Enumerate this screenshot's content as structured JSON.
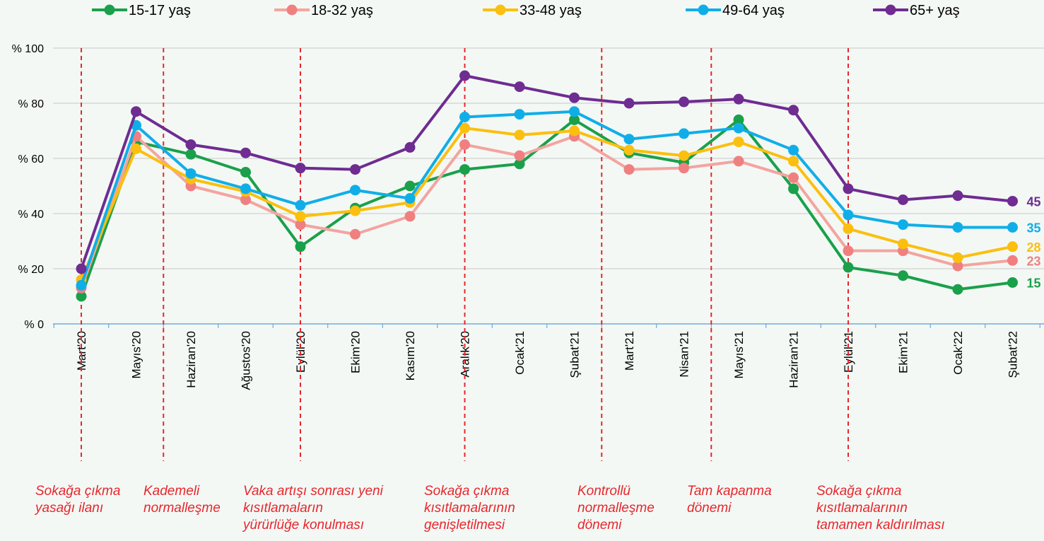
{
  "chart_data": {
    "type": "line",
    "categories": [
      "Mart'20",
      "Mayıs'20",
      "Haziran'20",
      "Ağustos'20",
      "Eylül'20",
      "Ekim'20",
      "Kasım'20",
      "Aralık'20",
      "Ocak'21",
      "Şubat'21",
      "Mart'21",
      "Nisan'21",
      "Mayıs'21",
      "Haziran'21",
      "Eylül'21",
      "Ekim'21",
      "Ocak'22",
      "Şubat'22"
    ],
    "series": [
      {
        "name": "15-17 yaş",
        "color": "#1aa04a",
        "values": [
          10,
          66,
          61.5,
          55,
          28,
          42,
          50,
          56,
          58,
          74,
          62,
          58.5,
          74,
          49,
          20.5,
          17.5,
          12.5,
          15
        ],
        "end_label": "15"
      },
      {
        "name": "18-32 yaş",
        "color": "#f4a49f",
        "marker_color": "#f08080",
        "values": [
          13,
          68,
          50,
          45,
          36,
          32.5,
          39,
          65,
          61,
          68,
          56,
          56.5,
          59,
          53,
          26.5,
          26.5,
          21,
          23
        ],
        "end_label": "23"
      },
      {
        "name": "33-48 yaş",
        "color": "#fbbf0f",
        "values": [
          16,
          63.5,
          52.5,
          48,
          39,
          41,
          44,
          71,
          68.5,
          70,
          63,
          61,
          66,
          59,
          34.5,
          29,
          24,
          28
        ],
        "end_label": "28"
      },
      {
        "name": "49-64 yaş",
        "color": "#10aee8",
        "values": [
          14,
          72,
          54.5,
          49,
          43,
          48.5,
          45.5,
          75,
          76,
          77,
          67,
          69,
          71,
          63,
          39.5,
          36,
          35,
          35
        ],
        "end_label": "35"
      },
      {
        "name": "65+ yaş",
        "color": "#6f2c91",
        "values": [
          20,
          77,
          65,
          62,
          56.5,
          56,
          64,
          90,
          86,
          82,
          80,
          80.5,
          81.5,
          77.5,
          49,
          45,
          46.5,
          44.5
        ],
        "end_label": "45"
      }
    ],
    "y_ticks": [
      "% 0",
      "% 20",
      "% 40",
      "% 60",
      "% 80",
      "% 100"
    ],
    "ylim": [
      0,
      100
    ],
    "grid": "horizontal",
    "legend_position": "top",
    "events": [
      {
        "after_index": 0,
        "text": [
          "Sokağa çıkma",
          "yasağı ilanı"
        ]
      },
      {
        "after_index": 1.5,
        "text": [
          "Kademeli",
          "normalleşme"
        ]
      },
      {
        "after_index": 4,
        "text": [
          "Vaka artışı sonrası yeni",
          "kısıtlamaların",
          "yürürlüğe konulması"
        ]
      },
      {
        "after_index": 7,
        "text": [
          "Sokağa çıkma",
          "kısıtlamalarının",
          "genişletilmesi"
        ]
      },
      {
        "after_index": 9.5,
        "text": [
          "Kontrollü",
          "normalleşme",
          "dönemi"
        ]
      },
      {
        "after_index": 11.5,
        "text": [
          "Tam kapanma",
          "dönemi"
        ]
      },
      {
        "after_index": 14,
        "text": [
          "Sokağa çıkma",
          "kısıtlamalarının",
          "tamamen kaldırılması"
        ]
      }
    ],
    "event_line_color": "#e8262b"
  }
}
